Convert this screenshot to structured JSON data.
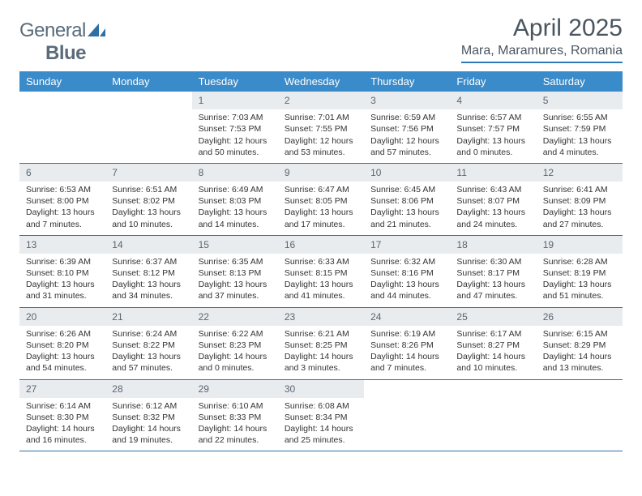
{
  "logo": {
    "text1": "General",
    "text2": "Blue"
  },
  "header": {
    "month_title": "April 2025",
    "location": "Mara, Maramures, Romania"
  },
  "colors": {
    "header_bar": "#3a8bc9",
    "rule": "#2f6fa5",
    "daynum_bg": "#e9ecef",
    "text": "#333333",
    "muted": "#5a6570",
    "title": "#4a5560",
    "logo": "#5a6b7a"
  },
  "weekdays": [
    "Sunday",
    "Monday",
    "Tuesday",
    "Wednesday",
    "Thursday",
    "Friday",
    "Saturday"
  ],
  "weeks": [
    [
      {
        "n": "",
        "sr": "",
        "ss": "",
        "dl": ""
      },
      {
        "n": "",
        "sr": "",
        "ss": "",
        "dl": ""
      },
      {
        "n": "1",
        "sr": "Sunrise: 7:03 AM",
        "ss": "Sunset: 7:53 PM",
        "dl": "Daylight: 12 hours and 50 minutes."
      },
      {
        "n": "2",
        "sr": "Sunrise: 7:01 AM",
        "ss": "Sunset: 7:55 PM",
        "dl": "Daylight: 12 hours and 53 minutes."
      },
      {
        "n": "3",
        "sr": "Sunrise: 6:59 AM",
        "ss": "Sunset: 7:56 PM",
        "dl": "Daylight: 12 hours and 57 minutes."
      },
      {
        "n": "4",
        "sr": "Sunrise: 6:57 AM",
        "ss": "Sunset: 7:57 PM",
        "dl": "Daylight: 13 hours and 0 minutes."
      },
      {
        "n": "5",
        "sr": "Sunrise: 6:55 AM",
        "ss": "Sunset: 7:59 PM",
        "dl": "Daylight: 13 hours and 4 minutes."
      }
    ],
    [
      {
        "n": "6",
        "sr": "Sunrise: 6:53 AM",
        "ss": "Sunset: 8:00 PM",
        "dl": "Daylight: 13 hours and 7 minutes."
      },
      {
        "n": "7",
        "sr": "Sunrise: 6:51 AM",
        "ss": "Sunset: 8:02 PM",
        "dl": "Daylight: 13 hours and 10 minutes."
      },
      {
        "n": "8",
        "sr": "Sunrise: 6:49 AM",
        "ss": "Sunset: 8:03 PM",
        "dl": "Daylight: 13 hours and 14 minutes."
      },
      {
        "n": "9",
        "sr": "Sunrise: 6:47 AM",
        "ss": "Sunset: 8:05 PM",
        "dl": "Daylight: 13 hours and 17 minutes."
      },
      {
        "n": "10",
        "sr": "Sunrise: 6:45 AM",
        "ss": "Sunset: 8:06 PM",
        "dl": "Daylight: 13 hours and 21 minutes."
      },
      {
        "n": "11",
        "sr": "Sunrise: 6:43 AM",
        "ss": "Sunset: 8:07 PM",
        "dl": "Daylight: 13 hours and 24 minutes."
      },
      {
        "n": "12",
        "sr": "Sunrise: 6:41 AM",
        "ss": "Sunset: 8:09 PM",
        "dl": "Daylight: 13 hours and 27 minutes."
      }
    ],
    [
      {
        "n": "13",
        "sr": "Sunrise: 6:39 AM",
        "ss": "Sunset: 8:10 PM",
        "dl": "Daylight: 13 hours and 31 minutes."
      },
      {
        "n": "14",
        "sr": "Sunrise: 6:37 AM",
        "ss": "Sunset: 8:12 PM",
        "dl": "Daylight: 13 hours and 34 minutes."
      },
      {
        "n": "15",
        "sr": "Sunrise: 6:35 AM",
        "ss": "Sunset: 8:13 PM",
        "dl": "Daylight: 13 hours and 37 minutes."
      },
      {
        "n": "16",
        "sr": "Sunrise: 6:33 AM",
        "ss": "Sunset: 8:15 PM",
        "dl": "Daylight: 13 hours and 41 minutes."
      },
      {
        "n": "17",
        "sr": "Sunrise: 6:32 AM",
        "ss": "Sunset: 8:16 PM",
        "dl": "Daylight: 13 hours and 44 minutes."
      },
      {
        "n": "18",
        "sr": "Sunrise: 6:30 AM",
        "ss": "Sunset: 8:17 PM",
        "dl": "Daylight: 13 hours and 47 minutes."
      },
      {
        "n": "19",
        "sr": "Sunrise: 6:28 AM",
        "ss": "Sunset: 8:19 PM",
        "dl": "Daylight: 13 hours and 51 minutes."
      }
    ],
    [
      {
        "n": "20",
        "sr": "Sunrise: 6:26 AM",
        "ss": "Sunset: 8:20 PM",
        "dl": "Daylight: 13 hours and 54 minutes."
      },
      {
        "n": "21",
        "sr": "Sunrise: 6:24 AM",
        "ss": "Sunset: 8:22 PM",
        "dl": "Daylight: 13 hours and 57 minutes."
      },
      {
        "n": "22",
        "sr": "Sunrise: 6:22 AM",
        "ss": "Sunset: 8:23 PM",
        "dl": "Daylight: 14 hours and 0 minutes."
      },
      {
        "n": "23",
        "sr": "Sunrise: 6:21 AM",
        "ss": "Sunset: 8:25 PM",
        "dl": "Daylight: 14 hours and 3 minutes."
      },
      {
        "n": "24",
        "sr": "Sunrise: 6:19 AM",
        "ss": "Sunset: 8:26 PM",
        "dl": "Daylight: 14 hours and 7 minutes."
      },
      {
        "n": "25",
        "sr": "Sunrise: 6:17 AM",
        "ss": "Sunset: 8:27 PM",
        "dl": "Daylight: 14 hours and 10 minutes."
      },
      {
        "n": "26",
        "sr": "Sunrise: 6:15 AM",
        "ss": "Sunset: 8:29 PM",
        "dl": "Daylight: 14 hours and 13 minutes."
      }
    ],
    [
      {
        "n": "27",
        "sr": "Sunrise: 6:14 AM",
        "ss": "Sunset: 8:30 PM",
        "dl": "Daylight: 14 hours and 16 minutes."
      },
      {
        "n": "28",
        "sr": "Sunrise: 6:12 AM",
        "ss": "Sunset: 8:32 PM",
        "dl": "Daylight: 14 hours and 19 minutes."
      },
      {
        "n": "29",
        "sr": "Sunrise: 6:10 AM",
        "ss": "Sunset: 8:33 PM",
        "dl": "Daylight: 14 hours and 22 minutes."
      },
      {
        "n": "30",
        "sr": "Sunrise: 6:08 AM",
        "ss": "Sunset: 8:34 PM",
        "dl": "Daylight: 14 hours and 25 minutes."
      },
      {
        "n": "",
        "sr": "",
        "ss": "",
        "dl": ""
      },
      {
        "n": "",
        "sr": "",
        "ss": "",
        "dl": ""
      },
      {
        "n": "",
        "sr": "",
        "ss": "",
        "dl": ""
      }
    ]
  ]
}
